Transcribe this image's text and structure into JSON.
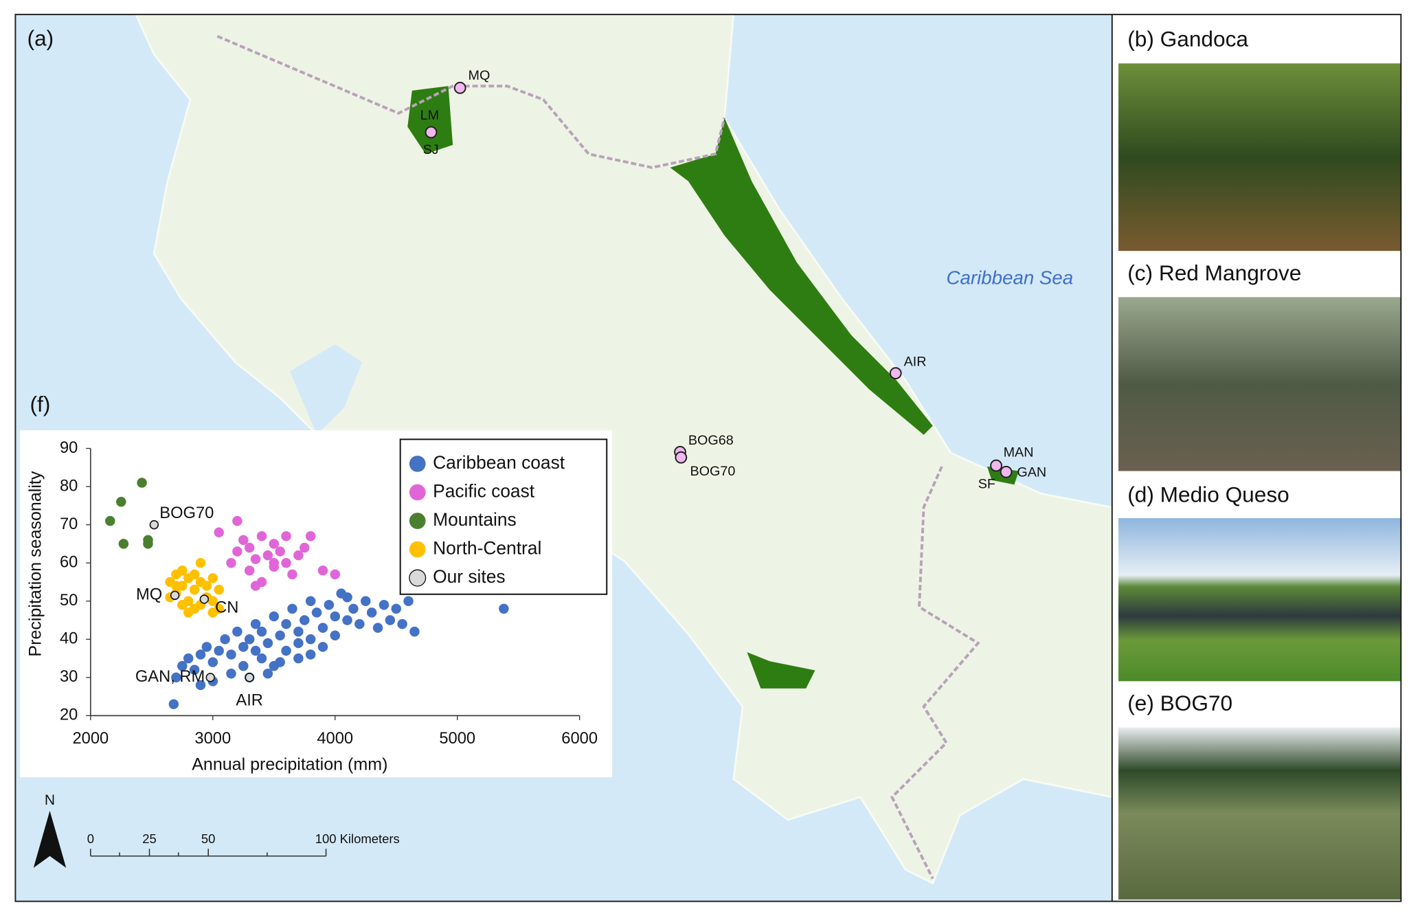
{
  "map": {
    "panel_label": "(a)",
    "sea_label": "Caribbean Sea",
    "sites": [
      "MQ",
      "LM",
      "SJ",
      "AIR",
      "BOG68",
      "BOG70",
      "MAN",
      "GAN",
      "SF"
    ],
    "north_label": "N",
    "scale_labels": [
      "0",
      "25",
      "50",
      "100 Kilometers"
    ]
  },
  "photos": [
    "(b) Gandoca",
    "(c) Red Mangrove",
    "(d) Medio Queso",
    "(e) BOG70"
  ],
  "chart_data": {
    "type": "scatter",
    "panel_label": "(f)",
    "x_label": "Annual precipitation (mm)",
    "y_label": "Precipitation seasonality",
    "xlim": [
      2000,
      6000
    ],
    "xticks": [
      2000,
      3000,
      4000,
      5000,
      6000
    ],
    "ylim": [
      20,
      90
    ],
    "yticks": [
      20,
      30,
      40,
      50,
      60,
      70,
      80,
      90
    ],
    "legend": "upper right",
    "series": [
      {
        "name": "Caribbean coast",
        "color": "#4472c4",
        "x": [
          2680,
          2700,
          2750,
          2800,
          2850,
          2900,
          2950,
          3000,
          3050,
          3100,
          3150,
          3200,
          3250,
          3300,
          3350,
          3400,
          3400,
          3450,
          3500,
          3500,
          3550,
          3600,
          3600,
          3650,
          3700,
          3700,
          3750,
          3800,
          3800,
          3850,
          3900,
          3900,
          3950,
          4000,
          4000,
          4050,
          4100,
          4150,
          4200,
          4250,
          4300,
          4350,
          4400,
          4450,
          4500,
          4550,
          4600,
          4650,
          5380,
          3300,
          3150,
          3250,
          3000,
          2900,
          3450,
          3550,
          3700,
          3350,
          3800,
          4100
        ],
        "values": [
          23,
          30,
          33,
          35,
          32,
          36,
          38,
          34,
          37,
          40,
          36,
          42,
          38,
          40,
          44,
          35,
          42,
          39,
          46,
          33,
          41,
          44,
          37,
          48,
          42,
          35,
          45,
          40,
          50,
          47,
          43,
          38,
          49,
          46,
          41,
          52,
          45,
          48,
          44,
          50,
          47,
          43,
          49,
          45,
          48,
          44,
          50,
          42,
          48,
          30,
          31,
          33,
          29,
          28,
          31,
          34,
          39,
          37,
          36,
          51
        ]
      },
      {
        "name": "Pacific coast",
        "color": "#e066d8",
        "x": [
          3050,
          3200,
          3150,
          3200,
          3250,
          3300,
          3300,
          3350,
          3400,
          3400,
          3450,
          3500,
          3500,
          3550,
          3600,
          3600,
          3650,
          3700,
          3750,
          3800,
          3900,
          4000,
          3350,
          3500
        ],
        "values": [
          68,
          71,
          60,
          63,
          66,
          58,
          64,
          61,
          67,
          55,
          62,
          59,
          65,
          63,
          60,
          67,
          57,
          62,
          64,
          67,
          58,
          57,
          54,
          60
        ]
      },
      {
        "name": "Mountains",
        "color": "#4a7f2f",
        "x": [
          2160,
          2250,
          2270,
          2420,
          2470,
          2470
        ],
        "values": [
          71,
          76,
          65,
          81,
          66,
          65
        ]
      },
      {
        "name": "North-Central",
        "color": "#ffc000",
        "x": [
          2650,
          2700,
          2700,
          2750,
          2750,
          2800,
          2800,
          2850,
          2850,
          2900,
          2900,
          2900,
          2950,
          2950,
          3000,
          3000,
          3050,
          3050,
          2800,
          2650,
          2750,
          2850,
          3000,
          2700
        ],
        "values": [
          55,
          57,
          52,
          58,
          54,
          56,
          50,
          57,
          53,
          60,
          55,
          49,
          54,
          51,
          56,
          50,
          53,
          48,
          47,
          51,
          49,
          48,
          47,
          54
        ]
      },
      {
        "name": "Our sites",
        "color": "#d9d9d9",
        "x": [
          2520,
          2690,
          2930,
          2980,
          3300
        ],
        "values": [
          70,
          51.5,
          50.5,
          30,
          30
        ],
        "labels": [
          "BOG70",
          "MQ",
          "CN",
          "GAN, RM",
          "AIR"
        ]
      }
    ]
  }
}
